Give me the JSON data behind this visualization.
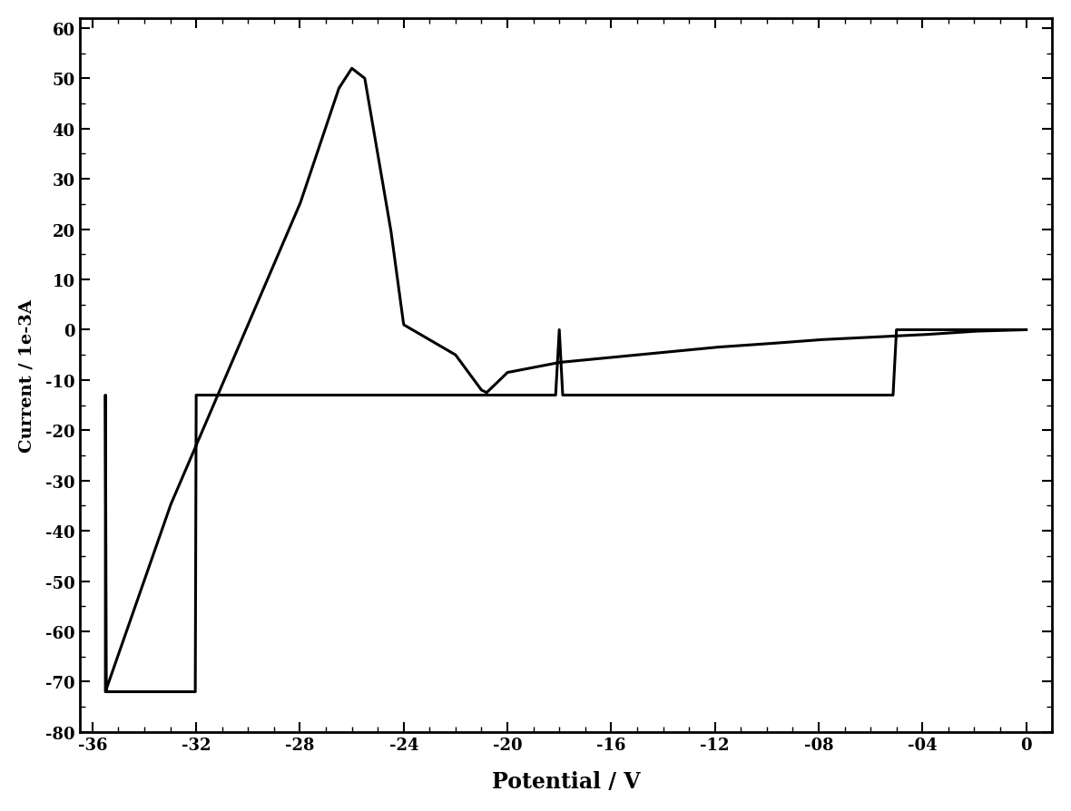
{
  "title": "",
  "xlabel": "Potential / V",
  "ylabel": "Current / 1e-3A",
  "xlim": [
    -36.5,
    1.0
  ],
  "ylim": [
    -80,
    62
  ],
  "xticks": [
    -36,
    -32,
    -28,
    -24,
    -20,
    -16,
    -12,
    -8,
    -4,
    0
  ],
  "yticks": [
    -80,
    -70,
    -60,
    -50,
    -40,
    -30,
    -20,
    -10,
    0,
    10,
    20,
    30,
    40,
    50,
    60
  ],
  "xtick_labels": [
    "-36",
    "-32",
    "-28",
    "-24",
    "-20",
    "-16",
    "-12",
    "-08",
    "-04",
    "0"
  ],
  "ytick_labels": [
    "-80",
    "-70",
    "-60",
    "-50",
    "-40",
    "-30",
    "-20",
    "-10",
    "0",
    "10",
    "20",
    "30",
    "40",
    "50",
    "60"
  ],
  "line_color": "#000000",
  "background_color": "#ffffff",
  "xlabel_fontsize": 17,
  "ylabel_fontsize": 14,
  "tick_fontsize": 13,
  "line_width": 2.2
}
